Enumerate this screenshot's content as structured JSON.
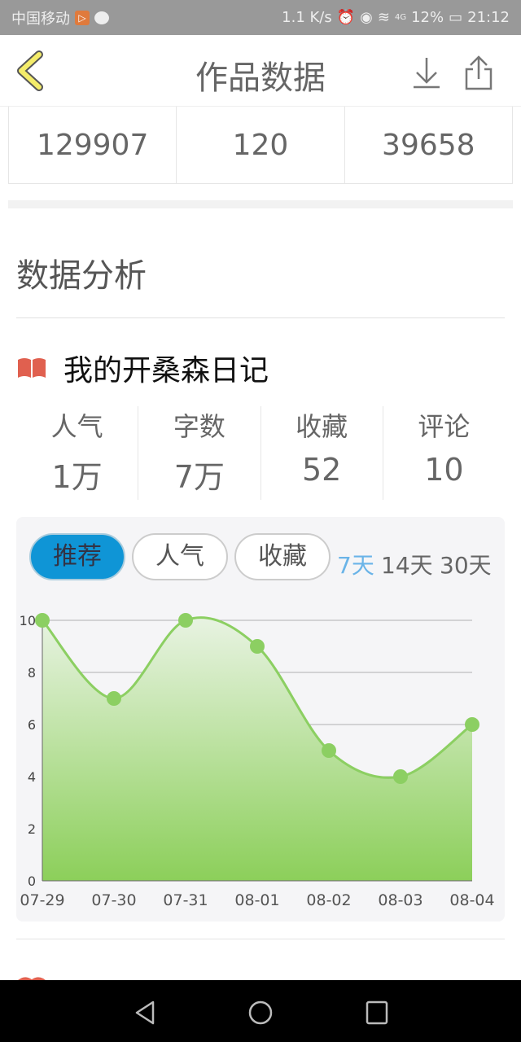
{
  "status_bar": {
    "carrier": "中国移动",
    "speed": "1.1 K/s",
    "network": "4G",
    "battery": "12%",
    "time": "21:12"
  },
  "header": {
    "title": "作品数据",
    "icons": [
      "back-chevron-icon",
      "download-icon",
      "share-icon"
    ],
    "back_color": "#f4ec6a"
  },
  "summary_values": [
    "129907",
    "120",
    "39658"
  ],
  "section_title": "数据分析",
  "work": {
    "title": "我的开桑森日记",
    "icon": "book-icon",
    "icon_color": "#e0604f",
    "metrics": [
      {
        "label": "人气",
        "value": "1万"
      },
      {
        "label": "字数",
        "value": "7万"
      },
      {
        "label": "收藏",
        "value": "52"
      },
      {
        "label": "评论",
        "value": "10"
      }
    ]
  },
  "chart_tabs": [
    {
      "label": "推荐",
      "active": true
    },
    {
      "label": "人气",
      "active": false
    },
    {
      "label": "收藏",
      "active": false
    }
  ],
  "range_options": [
    "7天",
    "14天",
    "30天"
  ],
  "chart_data": {
    "type": "area",
    "categories": [
      "07-29",
      "07-30",
      "07-31",
      "08-01",
      "08-02",
      "08-03",
      "08-04"
    ],
    "values": [
      10,
      7,
      10,
      9,
      5,
      4,
      6
    ],
    "yticks": [
      0,
      2,
      4,
      6,
      8,
      10
    ],
    "ylim": [
      0,
      10
    ],
    "smooth": true,
    "line_color": "#8ccf62",
    "fill_top": "#e8f3e2",
    "fill_bottom": "#8ccf5a",
    "grid": true
  },
  "nav_bar": {
    "icons": [
      "back-triangle-icon",
      "home-circle-icon",
      "recents-square-icon"
    ]
  }
}
